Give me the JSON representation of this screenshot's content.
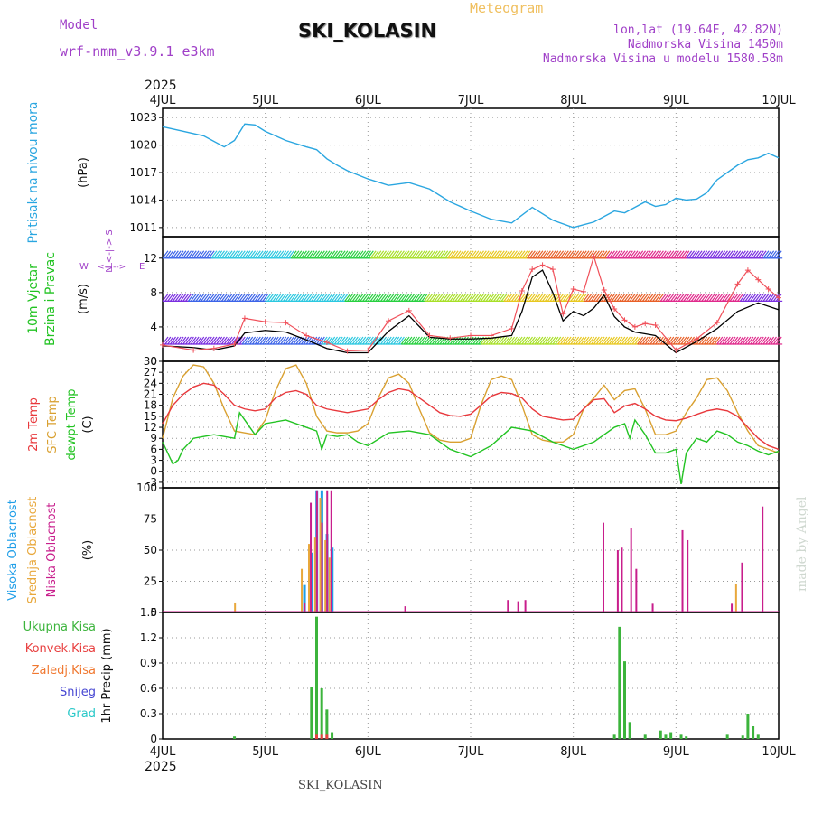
{
  "header": {
    "model_label": "Model",
    "model_name": "wrf-nmm_v3.9.1 e3km",
    "title": "SKI_KOLASIN",
    "subtitle": "Meteogram",
    "coords": "lon,lat (19.64E, 42.82N)",
    "elevation": "Nadmorska Visina 1450m",
    "model_elevation": "Nadmorska Visina u modelu 1580.58m"
  },
  "footer": {
    "station": "SKI_KOLASIN",
    "credit": "made by Angel"
  },
  "colors": {
    "pressure": "#2aa6e0",
    "temp2m": "#e8383c",
    "sfc": "#d9a030",
    "dew": "#22c322",
    "wind_speed": "#000000",
    "gust": "#f0505a",
    "high": "#1e9ee8",
    "mid": "#e8a83c",
    "low": "#c81e8c",
    "total": "#3cb43c",
    "conv": "#e84040",
    "frozen": "#f07830",
    "snow": "#4646d2",
    "hail": "#28c8c8",
    "title_purple": "#a040c8",
    "title_orange": "#f0c060"
  },
  "chart_data": [
    {
      "type": "line",
      "title": "Pritisak na nivou mora",
      "ylabel": "(hPa)",
      "ylim": [
        1010,
        1024
      ],
      "yticks": [
        "1023",
        "1020",
        "1017",
        "1014",
        "1011"
      ],
      "year": "2025",
      "xlim": [
        0,
        6
      ],
      "xticks": [
        "4JUL",
        "5JUL",
        "6JUL",
        "7JUL",
        "8JUL",
        "9JUL",
        "10JUL"
      ],
      "series": [
        {
          "name": "MSLP",
          "x": [
            0,
            0.2,
            0.4,
            0.6,
            0.7,
            0.8,
            0.9,
            1.0,
            1.2,
            1.4,
            1.5,
            1.6,
            1.7,
            1.8,
            2.0,
            2.2,
            2.4,
            2.6,
            2.8,
            3.0,
            3.2,
            3.4,
            3.6,
            3.8,
            4.0,
            4.2,
            4.4,
            4.5,
            4.6,
            4.7,
            4.8,
            4.9,
            5.0,
            5.1,
            5.2,
            5.3,
            5.4,
            5.6,
            5.7,
            5.8,
            5.9,
            6.0
          ],
          "values": [
            1022,
            1021.5,
            1021,
            1019.8,
            1020.5,
            1022.3,
            1022.2,
            1021.5,
            1020.5,
            1019.8,
            1019.5,
            1018.5,
            1017.8,
            1017.2,
            1016.3,
            1015.6,
            1015.9,
            1015.2,
            1013.8,
            1012.8,
            1011.9,
            1011.5,
            1013.2,
            1011.8,
            1011.0,
            1011.6,
            1012.8,
            1012.6,
            1013.2,
            1013.8,
            1013.3,
            1013.5,
            1014.2,
            1014.0,
            1014.1,
            1014.8,
            1016.2,
            1017.8,
            1018.4,
            1018.6,
            1019.1,
            1018.6
          ]
        }
      ]
    },
    {
      "type": "line",
      "title": "10m Vjetar",
      "title2": "Brzina i Pravac",
      "ylabel": "(m/s)",
      "dir_label": "N",
      "dir_labels": [
        "W",
        "N",
        "E",
        "S"
      ],
      "ylim": [
        0,
        14.5
      ],
      "yticks": [
        "12",
        "8",
        "4",
        "0"
      ],
      "barb_levels": [
        2,
        7,
        12
      ],
      "barb_ranges": [
        [
          0,
          6
        ],
        [
          0,
          6
        ],
        [
          0,
          6
        ]
      ],
      "series": [
        {
          "name": "speed",
          "x": [
            0,
            0.3,
            0.5,
            0.7,
            0.8,
            1.0,
            1.2,
            1.4,
            1.6,
            1.8,
            2.0,
            2.2,
            2.4,
            2.6,
            2.8,
            3.0,
            3.2,
            3.4,
            3.5,
            3.6,
            3.7,
            3.8,
            3.9,
            4.0,
            4.1,
            4.2,
            4.3,
            4.4,
            4.5,
            4.6,
            4.7,
            4.8,
            5.0,
            5.2,
            5.4,
            5.6,
            5.8,
            6.0
          ],
          "values": [
            1.8,
            1.6,
            1.3,
            1.8,
            3.3,
            3.6,
            3.4,
            2.5,
            1.5,
            1.0,
            1.0,
            3.5,
            5.3,
            2.8,
            2.6,
            2.6,
            2.7,
            3.0,
            5.8,
            9.8,
            10.6,
            8.0,
            4.7,
            5.8,
            5.3,
            6.2,
            7.7,
            5.2,
            4.0,
            3.4,
            3.2,
            3.0,
            1.0,
            2.3,
            3.8,
            5.8,
            6.8,
            6.0
          ]
        },
        {
          "name": "gust",
          "x": [
            0,
            0.3,
            0.5,
            0.7,
            0.8,
            1.0,
            1.2,
            1.4,
            1.6,
            1.8,
            2.0,
            2.2,
            2.4,
            2.6,
            2.8,
            3.0,
            3.2,
            3.4,
            3.5,
            3.6,
            3.7,
            3.8,
            3.9,
            4.0,
            4.1,
            4.2,
            4.3,
            4.4,
            4.5,
            4.6,
            4.7,
            4.8,
            5.0,
            5.2,
            5.4,
            5.6,
            5.7,
            5.8,
            5.9,
            6.0
          ],
          "values": [
            1.9,
            1.3,
            1.5,
            2.0,
            5.0,
            4.6,
            4.5,
            3.0,
            2.2,
            1.2,
            1.3,
            4.7,
            5.9,
            3.0,
            2.7,
            3.0,
            3.0,
            3.8,
            8.2,
            10.7,
            11.2,
            10.7,
            5.5,
            8.4,
            8.1,
            12.2,
            8.3,
            6.1,
            4.8,
            4.0,
            4.4,
            4.2,
            1.3,
            2.6,
            4.5,
            9.0,
            10.6,
            9.5,
            8.4,
            7.4
          ]
        }
      ]
    },
    {
      "type": "line",
      "title": "2m Temp",
      "title2": "SFC Temp",
      "title3": "dewpt Temp",
      "ylabel": "(C)",
      "ylim": [
        -4.5,
        30
      ],
      "yticks": [
        "30",
        "27",
        "24",
        "21",
        "18",
        "15",
        "12",
        "9",
        "6",
        "3",
        "0",
        "-3"
      ],
      "series": [
        {
          "name": "2m Temp",
          "x": [
            0,
            0.1,
            0.2,
            0.3,
            0.4,
            0.5,
            0.6,
            0.7,
            0.8,
            0.9,
            1.0,
            1.1,
            1.2,
            1.3,
            1.4,
            1.5,
            1.6,
            1.7,
            1.8,
            1.9,
            2.0,
            2.1,
            2.2,
            2.3,
            2.4,
            2.5,
            2.6,
            2.7,
            2.8,
            2.9,
            3.0,
            3.1,
            3.2,
            3.3,
            3.4,
            3.5,
            3.6,
            3.7,
            3.8,
            3.9,
            4.0,
            4.1,
            4.2,
            4.3,
            4.4,
            4.5,
            4.6,
            4.7,
            4.8,
            4.9,
            5.0,
            5.1,
            5.2,
            5.3,
            5.4,
            5.5,
            5.6,
            5.7,
            5.8,
            5.9,
            6.0
          ],
          "values": [
            13,
            18,
            21,
            23,
            24,
            23.5,
            21,
            18,
            17,
            16.5,
            17,
            20,
            21.5,
            22,
            21,
            18,
            17,
            16.5,
            16,
            16.5,
            17,
            19.5,
            21.5,
            22.5,
            22,
            20,
            18,
            16,
            15.2,
            15,
            15.6,
            18,
            20.5,
            21.5,
            21.2,
            20,
            17,
            15,
            14.5,
            14,
            14.2,
            17,
            19.5,
            19.8,
            16,
            17.8,
            18.5,
            17,
            15,
            14,
            13.8,
            14.5,
            15.5,
            16.5,
            17,
            16.5,
            15,
            12,
            9,
            7,
            6
          ]
        },
        {
          "name": "SFC Temp",
          "x": [
            0,
            0.1,
            0.2,
            0.3,
            0.4,
            0.5,
            0.6,
            0.7,
            0.8,
            0.9,
            1.0,
            1.1,
            1.2,
            1.3,
            1.4,
            1.5,
            1.6,
            1.7,
            1.8,
            1.9,
            2.0,
            2.1,
            2.2,
            2.3,
            2.4,
            2.5,
            2.6,
            2.7,
            2.8,
            2.9,
            3.0,
            3.1,
            3.2,
            3.3,
            3.4,
            3.5,
            3.6,
            3.7,
            3.8,
            3.9,
            4.0,
            4.1,
            4.2,
            4.3,
            4.4,
            4.5,
            4.6,
            4.7,
            4.8,
            4.9,
            5.0,
            5.1,
            5.2,
            5.3,
            5.4,
            5.5,
            5.6,
            5.7,
            5.8,
            5.9,
            6.0
          ],
          "values": [
            9,
            20,
            26,
            29,
            28.5,
            24,
            17,
            11,
            10.5,
            10,
            14,
            22,
            28,
            29,
            24,
            15,
            11,
            10.5,
            10.5,
            11,
            13,
            20,
            25.5,
            26.5,
            24,
            17,
            10.5,
            8.5,
            8,
            8,
            9,
            18,
            25,
            26,
            25,
            18,
            10,
            8.5,
            8,
            8,
            10,
            17,
            20,
            23.5,
            19.5,
            22,
            22.5,
            17,
            10,
            10,
            11,
            16,
            20,
            25,
            25.5,
            22,
            16,
            11,
            7,
            6,
            5
          ]
        },
        {
          "name": "dewpt Temp",
          "x": [
            0,
            0.1,
            0.15,
            0.2,
            0.3,
            0.4,
            0.5,
            0.6,
            0.7,
            0.75,
            0.8,
            0.9,
            1.0,
            1.2,
            1.4,
            1.5,
            1.55,
            1.6,
            1.7,
            1.8,
            1.9,
            2.0,
            2.2,
            2.4,
            2.6,
            2.8,
            3.0,
            3.2,
            3.4,
            3.6,
            3.8,
            4.0,
            4.2,
            4.4,
            4.5,
            4.55,
            4.6,
            4.7,
            4.8,
            4.9,
            5.0,
            5.05,
            5.1,
            5.2,
            5.3,
            5.4,
            5.5,
            5.6,
            5.7,
            5.8,
            5.9,
            6.0
          ],
          "values": [
            8,
            2,
            3,
            6,
            9,
            9.5,
            10,
            9.5,
            9,
            16,
            14,
            10,
            13,
            14,
            12,
            11,
            6,
            10,
            9.5,
            10,
            8,
            7,
            10.5,
            11,
            10,
            6,
            4,
            7,
            12,
            11,
            8,
            6,
            8,
            12,
            13,
            9,
            14,
            10,
            5,
            5,
            6,
            -3.5,
            5,
            9,
            8,
            11,
            10,
            8,
            7,
            5.5,
            4.5,
            5.5
          ]
        }
      ]
    },
    {
      "type": "bar",
      "title": "Visoka Oblacnost",
      "title2": "Srednja Oblacnost",
      "title3": "Niska Oblacnost",
      "ylabel": "(%)",
      "ylim": [
        0,
        100
      ],
      "yticks": [
        "100",
        "75",
        "50",
        "25",
        "0"
      ],
      "series": [
        {
          "name": "Visoka",
          "x": [
            1.38,
            1.45,
            1.5,
            1.55,
            1.6,
            1.65
          ],
          "values": [
            22,
            48,
            98,
            98,
            63,
            52
          ]
        },
        {
          "name": "Srednja",
          "x": [
            0.7,
            1.35,
            1.42,
            1.48,
            1.53,
            1.58,
            1.62,
            5.58
          ],
          "values": [
            8,
            35,
            55,
            60,
            92,
            58,
            44,
            23
          ]
        },
        {
          "name": "Niska",
          "x": [
            1.37,
            1.43,
            1.49,
            1.54,
            1.59,
            1.63,
            2.35,
            3.35,
            3.45,
            3.52,
            4.28,
            4.42,
            4.46,
            4.55,
            4.6,
            4.76,
            5.05,
            5.1,
            5.53,
            5.63,
            5.83
          ],
          "values": [
            8,
            88,
            98,
            72,
            98,
            98,
            5,
            10,
            9,
            10,
            72,
            50,
            52,
            68,
            35,
            7,
            66,
            58,
            7,
            40,
            85
          ]
        }
      ]
    },
    {
      "type": "bar",
      "title": "Ukupna Kisa",
      "title2": "Konvek.Kisa",
      "title3": "Zaledj.Kisa",
      "title4": "Snijeg",
      "title5": "Grad",
      "ylabel": "1hr Precip (mm)",
      "ylim": [
        0,
        1.5
      ],
      "yticks": [
        "1.5",
        "1.2",
        "0.9",
        "0.6",
        "0.3",
        "0"
      ],
      "series": [
        {
          "name": "Ukupna",
          "x": [
            0.7,
            1.45,
            1.5,
            1.55,
            1.6,
            1.65,
            4.4,
            4.45,
            4.5,
            4.55,
            4.7,
            4.85,
            4.9,
            4.95,
            5.05,
            5.1,
            5.5,
            5.65,
            5.7,
            5.75,
            5.8
          ],
          "values": [
            0.03,
            0.62,
            1.45,
            0.6,
            0.35,
            0.08,
            0.05,
            1.33,
            0.92,
            0.2,
            0.05,
            0.1,
            0.05,
            0.08,
            0.05,
            0.03,
            0.05,
            0.04,
            0.3,
            0.15,
            0.05
          ]
        },
        {
          "name": "Konvek",
          "x": [
            1.5,
            1.55,
            1.6
          ],
          "values": [
            0.05,
            0.05,
            0.05
          ]
        }
      ]
    }
  ]
}
